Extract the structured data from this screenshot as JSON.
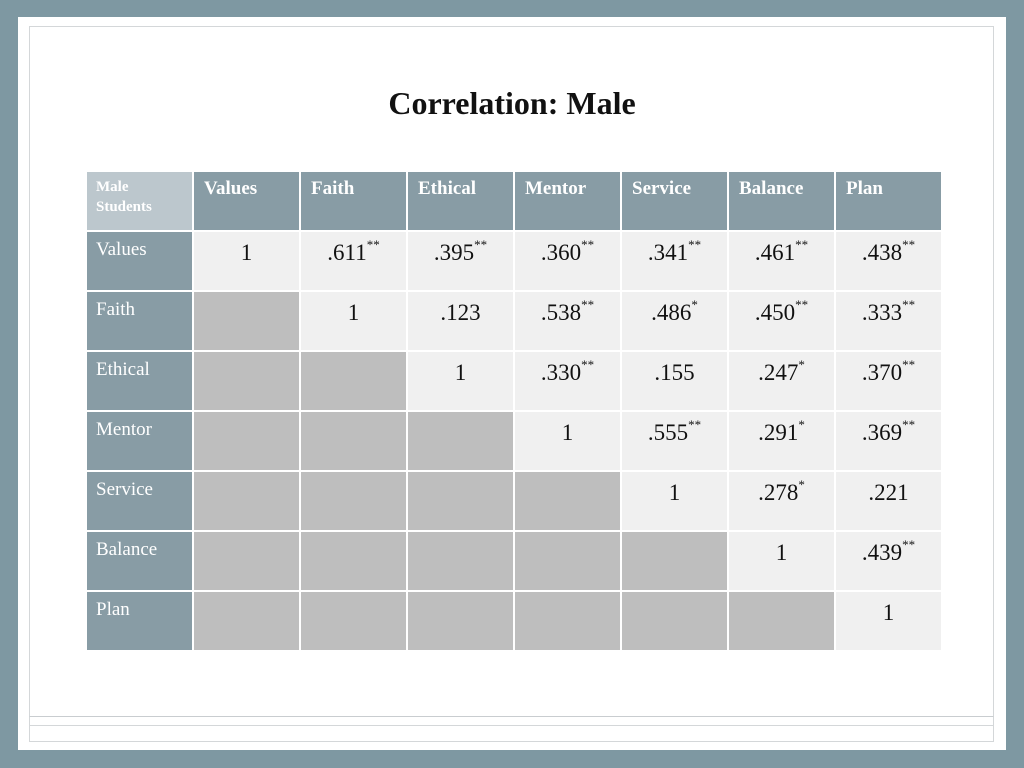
{
  "title": "Correlation: Male",
  "table": {
    "corner": [
      "Male",
      "Students"
    ],
    "columns": [
      "Values",
      "Faith",
      "Ethical",
      "Mentor",
      "Service",
      "Balance",
      "Plan"
    ],
    "rows": [
      {
        "label": "Values",
        "cells": [
          {
            "v": "1",
            "s": ""
          },
          {
            "v": ".611",
            "s": "**"
          },
          {
            "v": ".395",
            "s": "**"
          },
          {
            "v": ".360",
            "s": "**"
          },
          {
            "v": ".341",
            "s": "**"
          },
          {
            "v": ".461",
            "s": "**"
          },
          {
            "v": ".438",
            "s": "**"
          }
        ]
      },
      {
        "label": "Faith",
        "cells": [
          null,
          {
            "v": "1",
            "s": ""
          },
          {
            "v": ".123",
            "s": ""
          },
          {
            "v": ".538",
            "s": "**"
          },
          {
            "v": ".486",
            "s": "*"
          },
          {
            "v": ".450",
            "s": "**"
          },
          {
            "v": ".333",
            "s": "**"
          }
        ]
      },
      {
        "label": "Ethical",
        "cells": [
          null,
          null,
          {
            "v": "1",
            "s": ""
          },
          {
            "v": ".330",
            "s": "**"
          },
          {
            "v": ".155",
            "s": ""
          },
          {
            "v": ".247",
            "s": "*"
          },
          {
            "v": ".370",
            "s": "**"
          }
        ]
      },
      {
        "label": "Mentor",
        "cells": [
          null,
          null,
          null,
          {
            "v": "1",
            "s": ""
          },
          {
            "v": ".555",
            "s": "**"
          },
          {
            "v": ".291",
            "s": "*"
          },
          {
            "v": ".369",
            "s": "**"
          }
        ]
      },
      {
        "label": "Service",
        "cells": [
          null,
          null,
          null,
          null,
          {
            "v": "1",
            "s": ""
          },
          {
            "v": ".278",
            "s": "*"
          },
          {
            "v": ".221",
            "s": ""
          }
        ]
      },
      {
        "label": "Balance",
        "cells": [
          null,
          null,
          null,
          null,
          null,
          {
            "v": "1",
            "s": ""
          },
          {
            "v": ".439",
            "s": "**"
          }
        ]
      },
      {
        "label": "Plan",
        "cells": [
          null,
          null,
          null,
          null,
          null,
          null,
          {
            "v": "1",
            "s": ""
          }
        ]
      }
    ]
  },
  "colors": {
    "background": "#7e98a2",
    "header": "#889ca5",
    "corner": "#bcc7cd",
    "value_cell": "#f0f0f0",
    "blank_cell": "#bebebe"
  }
}
